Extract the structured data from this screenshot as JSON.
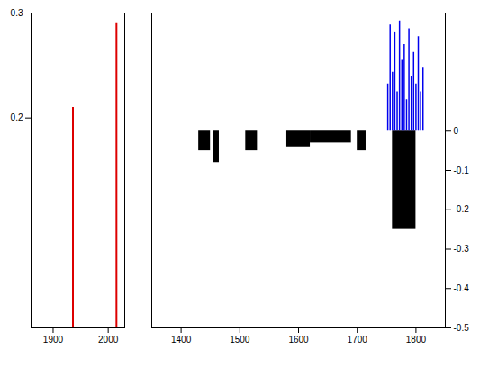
{
  "chart_data": [
    {
      "type": "spike",
      "x": [
        1936,
        2015
      ],
      "values": [
        0.21,
        0.29
      ],
      "color": "#dd0000",
      "xlim": [
        1860,
        2030
      ],
      "xticks": [
        1900,
        2000
      ],
      "ylim": [
        0,
        0.3
      ],
      "yticks": [
        0.2,
        0.3
      ]
    },
    {
      "type": "spike",
      "x": [
        1752,
        1756,
        1760,
        1764,
        1768,
        1772,
        1776,
        1780,
        1784,
        1788,
        1792,
        1796,
        1800,
        1804,
        1808,
        1812
      ],
      "values": [
        0.12,
        0.27,
        0.15,
        0.25,
        0.1,
        0.28,
        0.18,
        0.22,
        0.08,
        0.26,
        0.14,
        0.2,
        0.12,
        0.24,
        0.1,
        0.16
      ],
      "color": "#0000ee",
      "bars": [
        {
          "x1": 1430,
          "x2": 1450,
          "value": -0.05
        },
        {
          "x1": 1455,
          "x2": 1465,
          "value": -0.08
        },
        {
          "x1": 1510,
          "x2": 1530,
          "value": -0.05
        },
        {
          "x1": 1580,
          "x2": 1620,
          "value": -0.04
        },
        {
          "x1": 1620,
          "x2": 1690,
          "value": -0.03
        },
        {
          "x1": 1700,
          "x2": 1715,
          "value": -0.05
        },
        {
          "x1": 1760,
          "x2": 1800,
          "value": -0.25
        }
      ],
      "bar_color": "#000000",
      "xlim": [
        1350,
        1850
      ],
      "xticks": [
        1400,
        1500,
        1600,
        1700,
        1800
      ],
      "ylim": [
        -0.5,
        0.3
      ],
      "yticks": [
        -0.5,
        -0.4,
        -0.3,
        -0.2,
        -0.1,
        0
      ]
    }
  ]
}
